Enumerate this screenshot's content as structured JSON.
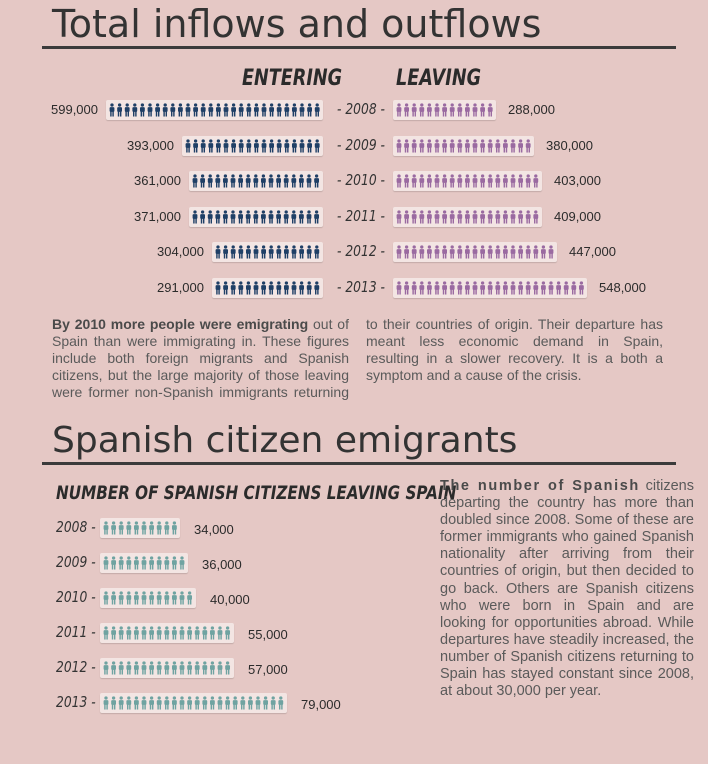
{
  "section1": {
    "title": "Total inflows and outflows",
    "entering_label": "ENTERING",
    "leaving_label": "LEAVING",
    "paragraph_bold": "By 2010 more people were emigrating",
    "paragraph_rest": " out of Spain than were immigrating in. These figures include both foreign migrants and Spanish citizens, but the large majority of those leaving were former non-Spanish immigrants returning to their countries of origin. Their departure has meant less economic demand in Spain, resulting in a slower recovery. It is a both a symptom and a cause of the crisis."
  },
  "section2": {
    "title": "Spanish citizen emigrants",
    "chart_title": "NUMBER OF SPANISH CITIZENS LEAVING SPAIN",
    "paragraph_bold": "The number of Spanish",
    "paragraph_rest": " citizens departing the country has more than doubled since 2008. Some of these are former immigrants who gained Spanish nationality after arriving from their countries of origin, but then decided to go back. Others are Spanish citizens who were born in Spain and are looking for opportunities abroad. While departures have steadily increased, the number of Spanish citizens returning to Spain has stayed constant since 2008, at about 30,000 per year."
  },
  "colors": {
    "entering": "#1f3f66",
    "leaving": "#9a6aa1",
    "spanish": "#6fa3a1",
    "background": "#e5c8c5"
  },
  "chart_data": [
    {
      "type": "bar",
      "categories": [
        "2008",
        "2009",
        "2010",
        "2011",
        "2012",
        "2013"
      ],
      "category_labels": [
        "- 2008 -",
        "- 2009 -",
        "- 2010 -",
        "- 2011 -",
        "- 2012 -",
        "- 2013 -"
      ],
      "series": [
        {
          "name": "ENTERING",
          "values": [
            599000,
            393000,
            361000,
            371000,
            304000,
            291000
          ],
          "labels": [
            "599,000",
            "393,000",
            "361,000",
            "371,000",
            "304,000",
            "291,000"
          ]
        },
        {
          "name": "LEAVING",
          "values": [
            288000,
            380000,
            403000,
            409000,
            447000,
            548000
          ],
          "labels": [
            "288,000",
            "380,000",
            "403,000",
            "409,000",
            "447,000",
            "548,000"
          ]
        }
      ]
    },
    {
      "type": "bar",
      "title": "NUMBER OF SPANISH CITIZENS LEAVING SPAIN",
      "categories": [
        "2008",
        "2009",
        "2010",
        "2011",
        "2012",
        "2013"
      ],
      "category_labels": [
        "2008 -",
        "2009 -",
        "2010 -",
        "2011 -",
        "2012 -",
        "2013 -"
      ],
      "values": [
        34000,
        36000,
        40000,
        55000,
        57000,
        79000
      ],
      "value_labels": [
        "34,000",
        "36,000",
        "40,000",
        "55,000",
        "57,000",
        "79,000"
      ]
    }
  ]
}
